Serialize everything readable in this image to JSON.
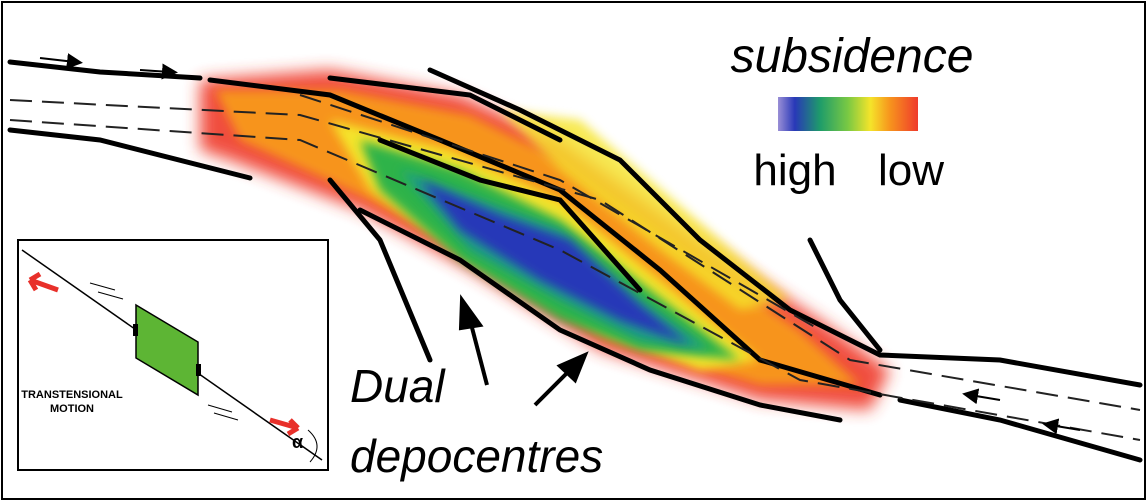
{
  "legend": {
    "title": "subsidence",
    "high": "high",
    "low": "low"
  },
  "annotation": {
    "lines": [
      "Dual",
      "depocentres"
    ]
  },
  "inset": {
    "label_lines": [
      "TRANSTENSIONAL",
      "MOTION"
    ],
    "angle": "α"
  }
}
